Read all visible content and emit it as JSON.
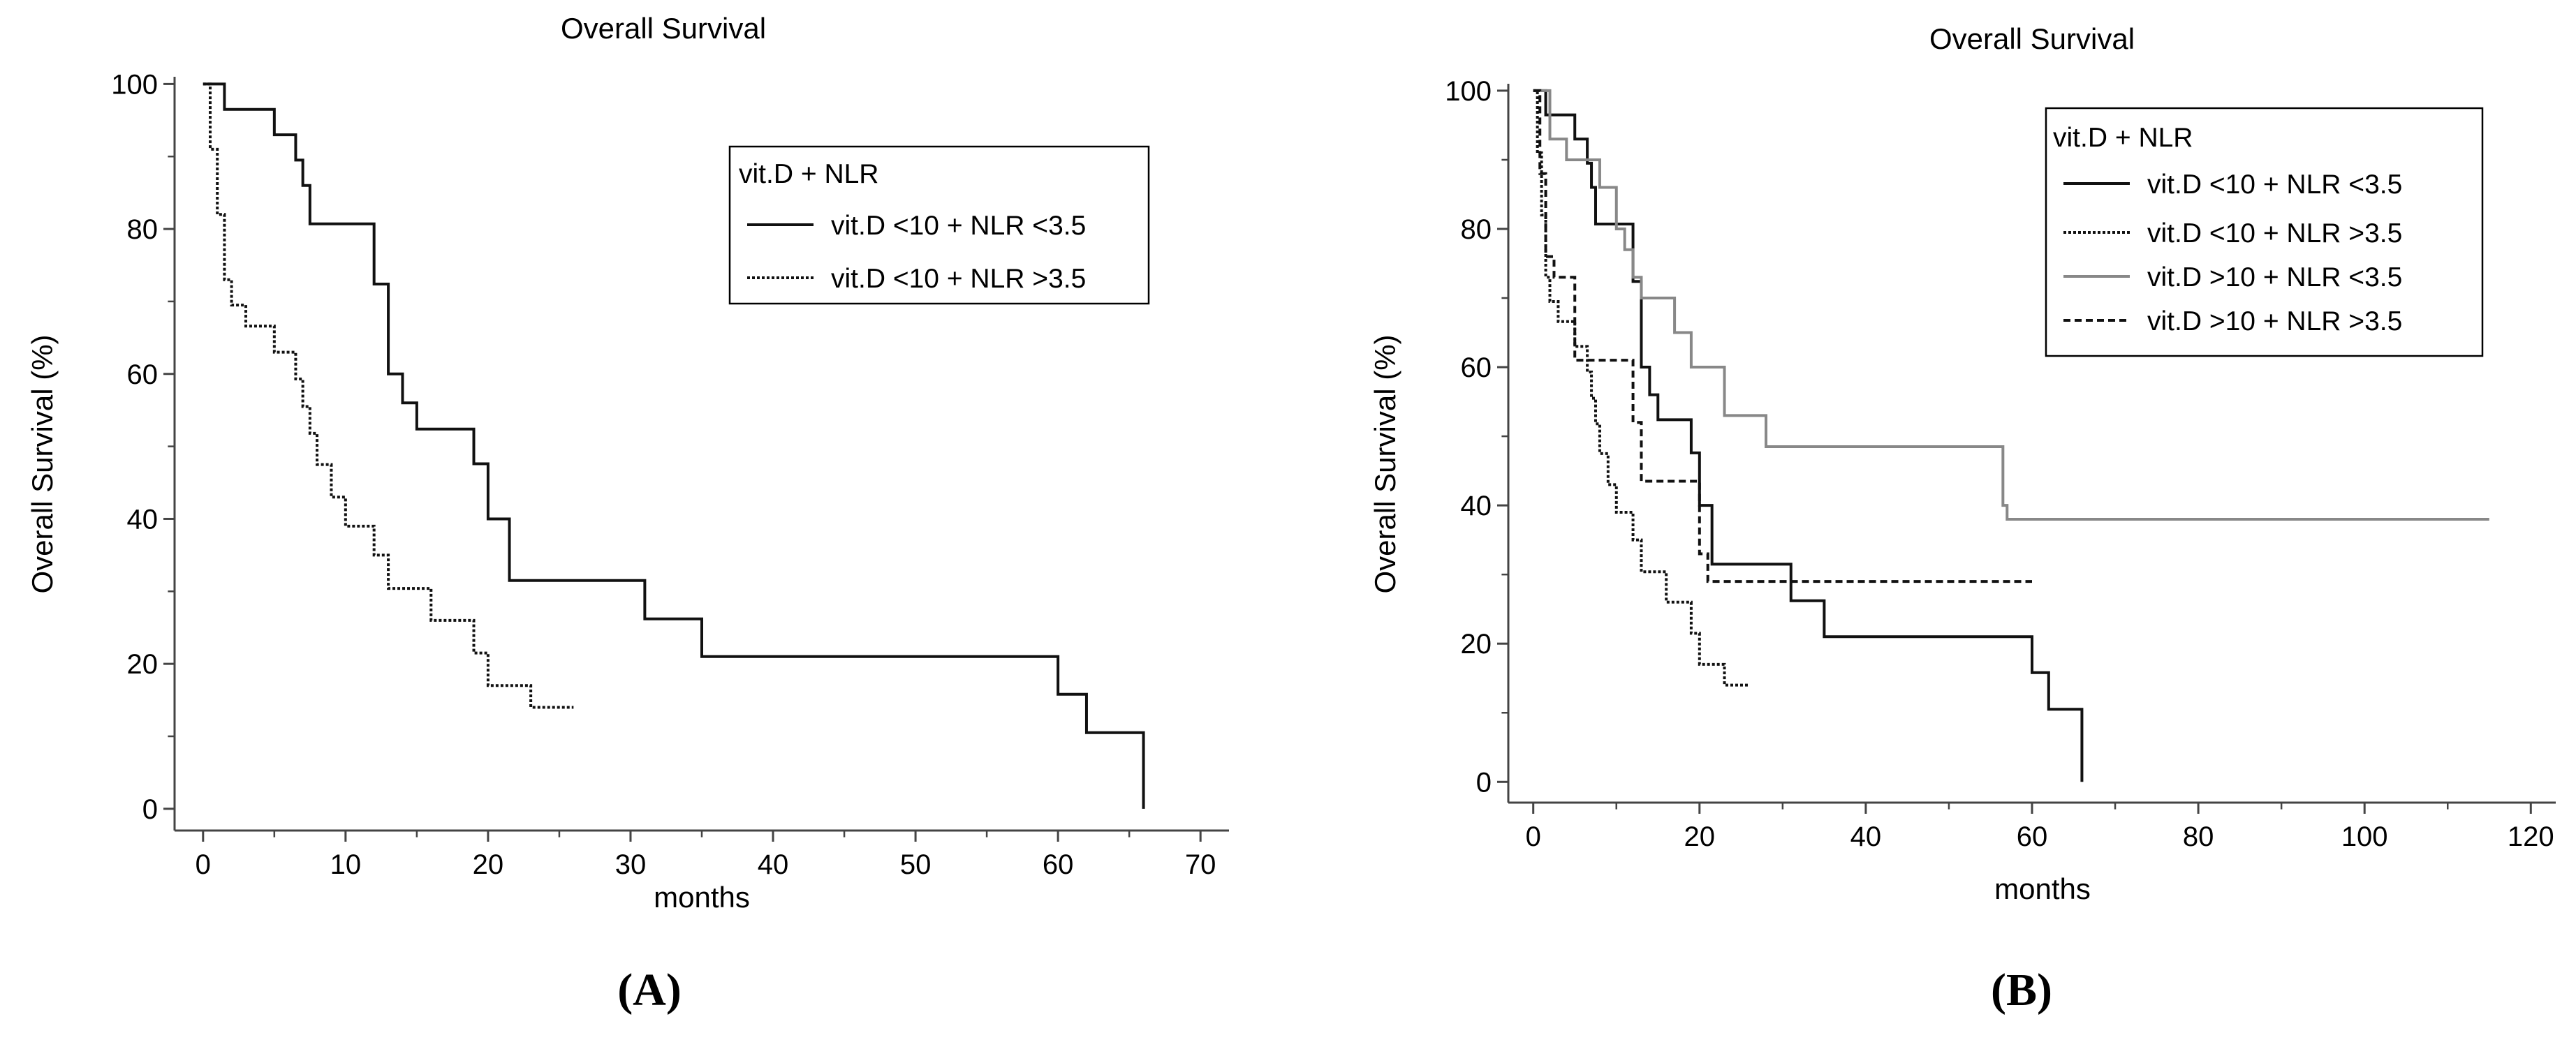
{
  "colors": {
    "dark": "#111111",
    "gray": "#888888",
    "axis": "#555555"
  },
  "chart_data": [
    {
      "type": "line",
      "subtype": "kaplan-meier",
      "panel": "(A)",
      "title": "Overall Survival",
      "xlabel": "months",
      "ylabel": "Overall Survival (%)",
      "xlim": [
        -2,
        72
      ],
      "ylim": [
        -3,
        101
      ],
      "xticks": [
        0,
        10,
        20,
        30,
        40,
        50,
        60,
        70
      ],
      "yticks": [
        0,
        20,
        40,
        60,
        80,
        100
      ],
      "legend_title": "vit.D + NLR",
      "legend_position": "top-right",
      "series": [
        {
          "name": "vit.D <10 + NLR <3.5",
          "color": "#111111",
          "dash": "solid",
          "x": [
            0,
            1.5,
            5,
            6.5,
            7,
            7.5,
            12,
            13,
            14,
            15,
            19,
            20,
            21.5,
            31,
            35,
            60,
            62,
            66
          ],
          "y": [
            100,
            96.5,
            93,
            89.5,
            86,
            80.7,
            72.4,
            60,
            56,
            52.4,
            47.6,
            40,
            31.5,
            26.2,
            21,
            15.8,
            10.5,
            0
          ],
          "end_x": 66
        },
        {
          "name": "vit.D <10 + NLR >3.5",
          "color": "#111111",
          "dash": "dotted",
          "x": [
            0,
            0.5,
            1,
            1.5,
            2,
            3,
            5,
            6.5,
            7,
            7.5,
            8,
            9,
            10,
            12,
            13,
            16,
            19,
            20,
            23
          ],
          "y": [
            100,
            91,
            82,
            73,
            69.5,
            66.6,
            63,
            59.3,
            55.5,
            51.8,
            47.5,
            43,
            39,
            35,
            30.4,
            26,
            21.5,
            17,
            14
          ],
          "end_x": 26
        }
      ]
    },
    {
      "type": "line",
      "subtype": "kaplan-meier",
      "panel": "(B)",
      "title": "Overall Survival",
      "xlabel": "months",
      "ylabel": "Overall Survival (%)",
      "xlim": [
        -3,
        123
      ],
      "ylim": [
        -3,
        101
      ],
      "xticks": [
        0,
        20,
        40,
        60,
        80,
        100,
        120
      ],
      "yticks": [
        0,
        20,
        40,
        60,
        80,
        100
      ],
      "legend_title": "vit.D + NLR",
      "legend_position": "top-right",
      "series": [
        {
          "name": "vit.D <10 + NLR <3.5",
          "color": "#111111",
          "dash": "solid",
          "x": [
            0,
            1.5,
            5,
            6.5,
            7,
            7.5,
            12,
            13,
            14,
            15,
            19,
            20,
            21.5,
            31,
            35,
            60,
            62,
            66
          ],
          "y": [
            100,
            96.5,
            93,
            89.5,
            86,
            80.7,
            72.4,
            60,
            56,
            52.4,
            47.6,
            40,
            31.5,
            26.2,
            21,
            15.8,
            10.5,
            0
          ],
          "end_x": 66
        },
        {
          "name": "vit.D <10 + NLR >3.5",
          "color": "#111111",
          "dash": "dotted",
          "x": [
            0,
            0.5,
            1,
            1.5,
            2,
            3,
            5,
            6.5,
            7,
            7.5,
            8,
            9,
            10,
            12,
            13,
            16,
            19,
            20,
            23
          ],
          "y": [
            100,
            91,
            82,
            73,
            69.5,
            66.6,
            63,
            59.3,
            55.5,
            51.8,
            47.5,
            43,
            39,
            35,
            30.4,
            26,
            21.5,
            17,
            14
          ],
          "end_x": 26
        },
        {
          "name": "vit.D >10 + NLR <3.5",
          "color": "#888888",
          "dash": "solid",
          "x": [
            0,
            2,
            4,
            8,
            10,
            11,
            12,
            13,
            17,
            19,
            23,
            28,
            56.5,
            57
          ],
          "y": [
            100,
            93,
            90,
            86,
            80,
            77,
            73,
            70,
            65,
            60,
            53,
            48.5,
            40,
            38
          ],
          "end_x": 115
        },
        {
          "name": "vit.D >10 + NLR >3.5",
          "color": "#111111",
          "dash": "dashed",
          "x": [
            0,
            0.8,
            1.5,
            2.5,
            5,
            12,
            13,
            15,
            20,
            21
          ],
          "y": [
            100,
            88,
            76,
            73,
            61,
            52,
            43.5,
            43.5,
            33,
            29
          ],
          "end_x": 60
        }
      ]
    }
  ]
}
